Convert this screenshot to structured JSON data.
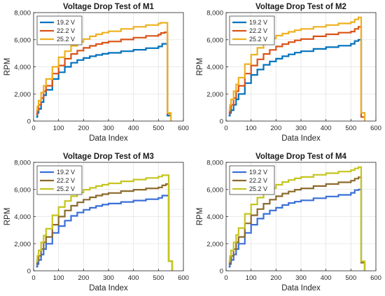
{
  "chart_data": [
    {
      "type": "line",
      "title": "Voltage Drop Test of M1",
      "xlabel": "Data Index",
      "ylabel": "RPM",
      "xlim": [
        0,
        600
      ],
      "ylim": [
        0,
        8000
      ],
      "xticks": [
        0,
        100,
        200,
        300,
        400,
        500,
        600
      ],
      "yticks": [
        "0",
        "2,000",
        "4,000",
        "6,000",
        "8,000"
      ],
      "grid": true,
      "legend": "top-left",
      "series": [
        {
          "name": "19.2 V",
          "color": "#0072BD",
          "x": [
            10,
            15,
            20,
            30,
            40,
            50,
            75,
            100,
            125,
            150,
            175,
            200,
            225,
            250,
            275,
            300,
            350,
            400,
            450,
            500,
            515,
            530,
            535,
            536,
            550
          ],
          "y": [
            300,
            600,
            900,
            1400,
            1900,
            2300,
            3100,
            3600,
            4000,
            4300,
            4500,
            4650,
            4780,
            4880,
            4960,
            5030,
            5150,
            5260,
            5380,
            5500,
            5700,
            5700,
            5700,
            400,
            400
          ]
        },
        {
          "name": "22.2 V",
          "color": "#D95319",
          "x": [
            10,
            15,
            20,
            30,
            40,
            50,
            75,
            100,
            125,
            150,
            175,
            200,
            225,
            250,
            275,
            300,
            350,
            400,
            450,
            500,
            510,
            525,
            535,
            536,
            550
          ],
          "y": [
            500,
            800,
            1200,
            1700,
            2200,
            2600,
            3500,
            4100,
            4600,
            4950,
            5200,
            5400,
            5550,
            5680,
            5780,
            5870,
            6020,
            6150,
            6280,
            6380,
            6500,
            6550,
            6550,
            550,
            500
          ]
        },
        {
          "name": "25.2 V",
          "color": "#EDB120",
          "x": [
            10,
            15,
            20,
            30,
            40,
            50,
            75,
            100,
            125,
            150,
            175,
            200,
            225,
            250,
            275,
            300,
            350,
            400,
            450,
            500,
            510,
            525,
            535,
            536,
            550
          ],
          "y": [
            800,
            1100,
            1500,
            2100,
            2600,
            3100,
            4000,
            4700,
            5150,
            5550,
            5850,
            6050,
            6250,
            6400,
            6520,
            6620,
            6800,
            6950,
            7080,
            7200,
            7250,
            7250,
            7250,
            600,
            0
          ]
        }
      ]
    },
    {
      "type": "line",
      "title": "Voltage Drop Test of M2",
      "xlabel": "Data Index",
      "ylabel": "RPM",
      "xlim": [
        0,
        600
      ],
      "ylim": [
        0,
        8000
      ],
      "xticks": [
        0,
        100,
        200,
        300,
        400,
        500,
        600
      ],
      "yticks": [
        "0",
        "2,000",
        "4,000",
        "6,000",
        "8,000"
      ],
      "grid": true,
      "legend": "top-left",
      "series": [
        {
          "name": "19.2 V",
          "color": "#0072BD",
          "x": [
            10,
            15,
            20,
            30,
            40,
            50,
            75,
            100,
            125,
            150,
            175,
            200,
            225,
            250,
            275,
            300,
            350,
            400,
            450,
            500,
            515,
            530,
            540,
            541,
            555
          ],
          "y": [
            400,
            600,
            800,
            1200,
            1600,
            2000,
            2800,
            3400,
            3800,
            4150,
            4400,
            4600,
            4780,
            4920,
            5050,
            5150,
            5320,
            5450,
            5560,
            5700,
            5900,
            6000,
            6000,
            600,
            600
          ]
        },
        {
          "name": "22.2 V",
          "color": "#D95319",
          "x": [
            10,
            15,
            20,
            30,
            40,
            50,
            75,
            100,
            125,
            150,
            175,
            200,
            225,
            250,
            275,
            300,
            350,
            400,
            450,
            500,
            515,
            530,
            540,
            541,
            555
          ],
          "y": [
            600,
            900,
            1200,
            1700,
            2200,
            2600,
            3500,
            4100,
            4550,
            4950,
            5250,
            5500,
            5680,
            5820,
            5950,
            6050,
            6250,
            6400,
            6520,
            6600,
            6800,
            6950,
            6950,
            300,
            250
          ]
        },
        {
          "name": "25.2 V",
          "color": "#EDB120",
          "x": [
            10,
            15,
            20,
            30,
            40,
            50,
            75,
            100,
            125,
            150,
            175,
            200,
            225,
            250,
            275,
            300,
            350,
            400,
            450,
            500,
            515,
            530,
            540,
            541,
            555
          ],
          "y": [
            800,
            1200,
            1600,
            2200,
            2700,
            3200,
            4200,
            4900,
            5400,
            5800,
            6100,
            6300,
            6450,
            6580,
            6700,
            6800,
            6950,
            7080,
            7200,
            7300,
            7500,
            7650,
            7650,
            600,
            0
          ]
        }
      ]
    },
    {
      "type": "line",
      "title": "Voltage Drop Test of M3",
      "xlabel": "Data Index",
      "ylabel": "RPM",
      "xlim": [
        0,
        600
      ],
      "ylim": [
        0,
        8000
      ],
      "xticks": [
        0,
        100,
        200,
        300,
        400,
        500,
        600
      ],
      "yticks": [
        "0",
        "2,000",
        "4,000",
        "6,000",
        "8,000"
      ],
      "grid": true,
      "legend": "top-left",
      "series": [
        {
          "name": "19.2 V",
          "color": "#3A6FD8",
          "x": [
            10,
            15,
            20,
            30,
            40,
            50,
            75,
            100,
            125,
            150,
            175,
            200,
            225,
            250,
            275,
            300,
            350,
            400,
            450,
            500,
            515,
            530,
            540,
            541,
            555
          ],
          "y": [
            300,
            500,
            800,
            1200,
            1600,
            2000,
            2800,
            3300,
            3700,
            4050,
            4300,
            4500,
            4650,
            4780,
            4880,
            4960,
            5080,
            5180,
            5280,
            5380,
            5550,
            5550,
            5550,
            700,
            0
          ]
        },
        {
          "name": "22.2 V",
          "color": "#8C6A2C",
          "x": [
            10,
            15,
            20,
            30,
            40,
            50,
            75,
            100,
            125,
            150,
            175,
            200,
            225,
            250,
            275,
            300,
            350,
            400,
            450,
            500,
            515,
            530,
            540,
            541,
            555
          ],
          "y": [
            500,
            800,
            1100,
            1600,
            2100,
            2500,
            3400,
            4000,
            4450,
            4800,
            5050,
            5250,
            5420,
            5550,
            5650,
            5740,
            5880,
            5980,
            6080,
            6150,
            6300,
            6400,
            6400,
            700,
            0
          ]
        },
        {
          "name": "25.2 V",
          "color": "#C5C51F",
          "x": [
            10,
            15,
            20,
            30,
            40,
            50,
            75,
            100,
            125,
            150,
            175,
            200,
            225,
            250,
            275,
            300,
            350,
            400,
            450,
            500,
            515,
            530,
            540,
            541,
            555
          ],
          "y": [
            700,
            1100,
            1500,
            2100,
            2600,
            3100,
            4100,
            4700,
            5150,
            5500,
            5780,
            5980,
            6120,
            6250,
            6350,
            6450,
            6600,
            6730,
            6850,
            6950,
            7050,
            7050,
            7050,
            700,
            0
          ]
        }
      ]
    },
    {
      "type": "line",
      "title": "Voltage Drop Test of M4",
      "xlabel": "Data Index",
      "ylabel": "RPM",
      "xlim": [
        0,
        600
      ],
      "ylim": [
        0,
        8000
      ],
      "xticks": [
        0,
        100,
        200,
        300,
        400,
        500,
        600
      ],
      "yticks": [
        "0",
        "2,000",
        "4,000",
        "6,000",
        "8,000"
      ],
      "grid": true,
      "legend": "top-left",
      "series": [
        {
          "name": "19.2 V",
          "color": "#3A6FD8",
          "x": [
            10,
            15,
            20,
            30,
            40,
            50,
            75,
            100,
            125,
            150,
            175,
            200,
            225,
            250,
            275,
            300,
            350,
            400,
            450,
            500,
            515,
            530,
            540,
            541,
            555
          ],
          "y": [
            300,
            500,
            800,
            1200,
            1600,
            2000,
            2800,
            3400,
            3850,
            4200,
            4450,
            4650,
            4850,
            5000,
            5100,
            5200,
            5350,
            5480,
            5600,
            5750,
            5950,
            6000,
            6000,
            600,
            0
          ]
        },
        {
          "name": "22.2 V",
          "color": "#8C6A2C",
          "x": [
            10,
            15,
            20,
            30,
            40,
            50,
            75,
            100,
            125,
            150,
            175,
            200,
            225,
            250,
            275,
            300,
            350,
            400,
            450,
            500,
            515,
            530,
            540,
            541,
            555
          ],
          "y": [
            500,
            800,
            1100,
            1600,
            2100,
            2500,
            3500,
            4100,
            4550,
            4950,
            5250,
            5500,
            5700,
            5850,
            5980,
            6080,
            6250,
            6400,
            6530,
            6650,
            6800,
            6900,
            6900,
            600,
            0
          ]
        },
        {
          "name": "25.2 V",
          "color": "#C5C51F",
          "x": [
            10,
            15,
            20,
            30,
            40,
            50,
            75,
            100,
            125,
            150,
            175,
            200,
            225,
            250,
            275,
            300,
            350,
            400,
            450,
            500,
            515,
            530,
            540,
            541,
            555
          ],
          "y": [
            700,
            1100,
            1500,
            2100,
            2650,
            3150,
            4200,
            4900,
            5400,
            5800,
            6100,
            6350,
            6550,
            6700,
            6820,
            6920,
            7080,
            7200,
            7320,
            7420,
            7550,
            7650,
            7650,
            700,
            0
          ]
        }
      ]
    }
  ]
}
